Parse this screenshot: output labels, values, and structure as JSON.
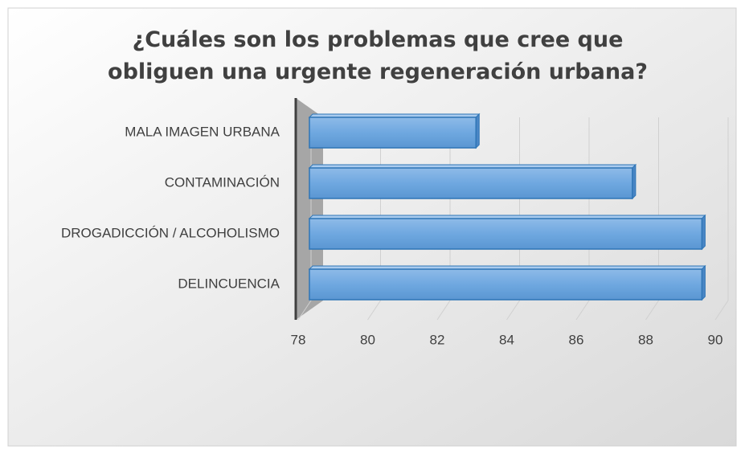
{
  "chart_data": {
    "type": "bar3d",
    "orientation": "horizontal",
    "title": "¿Cuáles son los problemas que cree que obliguen una urgente regeneración urbana?",
    "categories": [
      "MALA IMAGEN URBANA",
      "CONTAMINACIÓN",
      "DROGADICCIÓN / ALCOHOLISMO",
      "DELINCUENCIA"
    ],
    "values": [
      83,
      87.5,
      89.5,
      89.5
    ],
    "color": "#6fa8e0",
    "xlim": [
      78,
      90
    ],
    "xticks": [
      78,
      80,
      82,
      84,
      86,
      88,
      90
    ],
    "grid": true
  }
}
